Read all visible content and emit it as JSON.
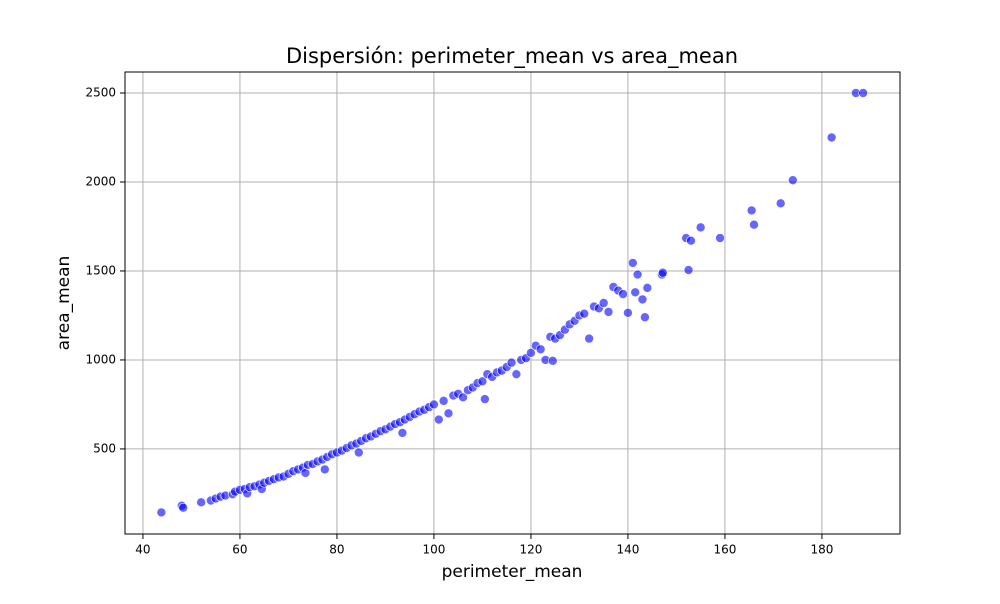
{
  "chart_data": {
    "type": "scatter",
    "title": "Dispersión: perimeter_mean vs area_mean",
    "x_label": "perimeter_mean",
    "y_label": "area_mean",
    "color": "#0000ff",
    "grid": true,
    "xlim": [
      36.3,
      196.1
    ],
    "ylim": [
      22,
      2618
    ],
    "xticks": [
      40,
      60,
      80,
      100,
      120,
      140,
      160,
      180
    ],
    "yticks": [
      500,
      1000,
      1500,
      2000,
      2500
    ],
    "x": [
      43.8,
      48,
      48.3,
      52,
      54,
      55,
      56,
      57,
      58.5,
      59,
      60,
      61,
      61.5,
      62,
      63,
      64,
      64.5,
      65,
      66,
      67,
      68,
      69,
      70,
      71,
      72,
      73,
      73.5,
      74,
      75,
      76,
      77,
      77.5,
      78,
      79,
      80,
      81,
      82,
      83,
      84,
      84.5,
      85,
      86,
      87,
      88,
      89,
      90,
      91,
      92,
      93,
      93.5,
      94,
      95,
      96,
      97,
      98,
      99,
      100,
      101,
      102,
      103,
      104,
      105,
      106,
      107,
      108,
      109,
      110,
      110.5,
      111,
      112,
      113,
      114,
      115,
      116,
      117,
      118,
      119,
      120,
      121,
      122,
      123,
      124,
      124.5,
      125,
      126,
      127,
      128,
      129,
      130,
      131,
      132,
      133,
      134,
      135,
      136,
      137,
      138,
      139,
      140,
      141,
      141.5,
      142,
      143,
      143.5,
      144,
      147,
      147.2,
      152,
      152.5,
      153,
      155,
      159,
      165.5,
      166,
      171.5,
      174,
      182,
      187,
      188.5
    ],
    "values": [
      143,
      181,
      170,
      200,
      210,
      221,
      232,
      238,
      245,
      260,
      270,
      275,
      250,
      285,
      290,
      300,
      275,
      310,
      320,
      330,
      340,
      345,
      360,
      375,
      385,
      395,
      365,
      410,
      415,
      430,
      440,
      385,
      455,
      470,
      480,
      490,
      505,
      520,
      530,
      480,
      545,
      560,
      570,
      585,
      600,
      610,
      625,
      640,
      650,
      590,
      665,
      680,
      695,
      710,
      720,
      735,
      750,
      665,
      770,
      700,
      800,
      810,
      790,
      830,
      845,
      870,
      880,
      780,
      920,
      905,
      930,
      940,
      960,
      985,
      920,
      1000,
      1010,
      1040,
      1080,
      1060,
      1000,
      1130,
      995,
      1120,
      1140,
      1170,
      1200,
      1220,
      1250,
      1260,
      1120,
      1300,
      1290,
      1320,
      1270,
      1410,
      1390,
      1370,
      1265,
      1545,
      1380,
      1480,
      1340,
      1240,
      1405,
      1480,
      1490,
      1685,
      1505,
      1670,
      1745,
      1685,
      1840,
      1760,
      1880,
      2010,
      2250,
      2500,
      2500
    ]
  }
}
